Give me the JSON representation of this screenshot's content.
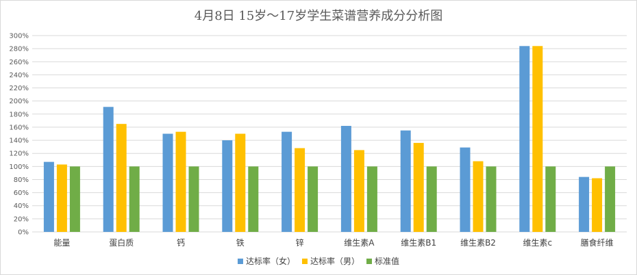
{
  "chart_data": {
    "type": "bar",
    "title": "4月8日 15岁～17岁学生菜谱营养成分分析图",
    "xlabel": "",
    "ylabel": "",
    "categories": [
      "能量",
      "蛋白质",
      "钙",
      "铁",
      "锌",
      "维生素A",
      "维生素B1",
      "维生素B2",
      "维生素c",
      "膳食纤维"
    ],
    "ylim": [
      0,
      300
    ],
    "yticks": [
      0,
      20,
      40,
      60,
      80,
      100,
      120,
      140,
      160,
      180,
      200,
      220,
      240,
      260,
      280,
      300
    ],
    "ytick_labels": [
      "0%",
      "20%",
      "40%",
      "60%",
      "80%",
      "100%",
      "120%",
      "140%",
      "160%",
      "180%",
      "200%",
      "220%",
      "240%",
      "260%",
      "280%",
      "300%"
    ],
    "grid": true,
    "legend_position": "bottom",
    "series": [
      {
        "name": "达标率（女）",
        "color": "#5b9bd5",
        "values": [
          107,
          191,
          150,
          140,
          153,
          162,
          155,
          129,
          284,
          84
        ]
      },
      {
        "name": "达标率（男）",
        "color": "#ffc000",
        "values": [
          103,
          165,
          153,
          150,
          128,
          125,
          136,
          108,
          284,
          82
        ]
      },
      {
        "name": "标准值",
        "color": "#70ad47",
        "values": [
          100,
          100,
          100,
          100,
          100,
          100,
          100,
          100,
          100,
          100
        ]
      }
    ]
  }
}
